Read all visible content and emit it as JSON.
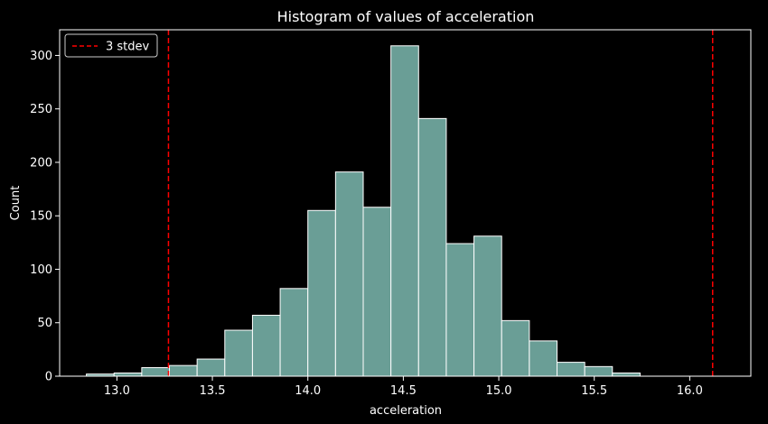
{
  "chart_data": {
    "type": "bar",
    "title": "Histogram of values of acceleration",
    "xlabel": "acceleration",
    "ylabel": "Count",
    "xlim": [
      12.7,
      16.32
    ],
    "ylim": [
      0,
      324
    ],
    "xticks": [
      "13.0",
      "13.5",
      "14.0",
      "14.5",
      "15.0",
      "15.5",
      "16.0"
    ],
    "yticks": [
      "0",
      "50",
      "100",
      "150",
      "200",
      "250",
      "300"
    ],
    "bins": [
      {
        "x0": 12.84,
        "x1": 12.985,
        "count": 2
      },
      {
        "x0": 12.985,
        "x1": 13.13,
        "count": 3
      },
      {
        "x0": 13.13,
        "x1": 13.275,
        "count": 8
      },
      {
        "x0": 13.275,
        "x1": 13.42,
        "count": 10
      },
      {
        "x0": 13.42,
        "x1": 13.565,
        "count": 16
      },
      {
        "x0": 13.565,
        "x1": 13.71,
        "count": 43
      },
      {
        "x0": 13.71,
        "x1": 13.855,
        "count": 57
      },
      {
        "x0": 13.855,
        "x1": 14.0,
        "count": 82
      },
      {
        "x0": 14.0,
        "x1": 14.145,
        "count": 155
      },
      {
        "x0": 14.145,
        "x1": 14.29,
        "count": 191
      },
      {
        "x0": 14.29,
        "x1": 14.435,
        "count": 158
      },
      {
        "x0": 14.435,
        "x1": 14.58,
        "count": 309
      },
      {
        "x0": 14.58,
        "x1": 14.725,
        "count": 241
      },
      {
        "x0": 14.725,
        "x1": 14.87,
        "count": 124
      },
      {
        "x0": 14.87,
        "x1": 15.015,
        "count": 131
      },
      {
        "x0": 15.015,
        "x1": 15.16,
        "count": 52
      },
      {
        "x0": 15.16,
        "x1": 15.305,
        "count": 33
      },
      {
        "x0": 15.305,
        "x1": 15.45,
        "count": 13
      },
      {
        "x0": 15.45,
        "x1": 15.595,
        "count": 9
      },
      {
        "x0": 15.595,
        "x1": 15.74,
        "count": 3
      }
    ],
    "vlines": [
      {
        "x": 13.27,
        "label": "3 stdev",
        "style": "dashed"
      },
      {
        "x": 16.12,
        "label": "3 stdev",
        "style": "dashed"
      }
    ],
    "legend": {
      "position": "top-left",
      "entries": [
        "3 stdev"
      ]
    },
    "grid": false,
    "colors": {
      "background": "#000000",
      "bar_fill": "#6a9e96",
      "bar_edge": "#ffffff",
      "vline": "#ff0000",
      "text": "#ffffff"
    }
  }
}
